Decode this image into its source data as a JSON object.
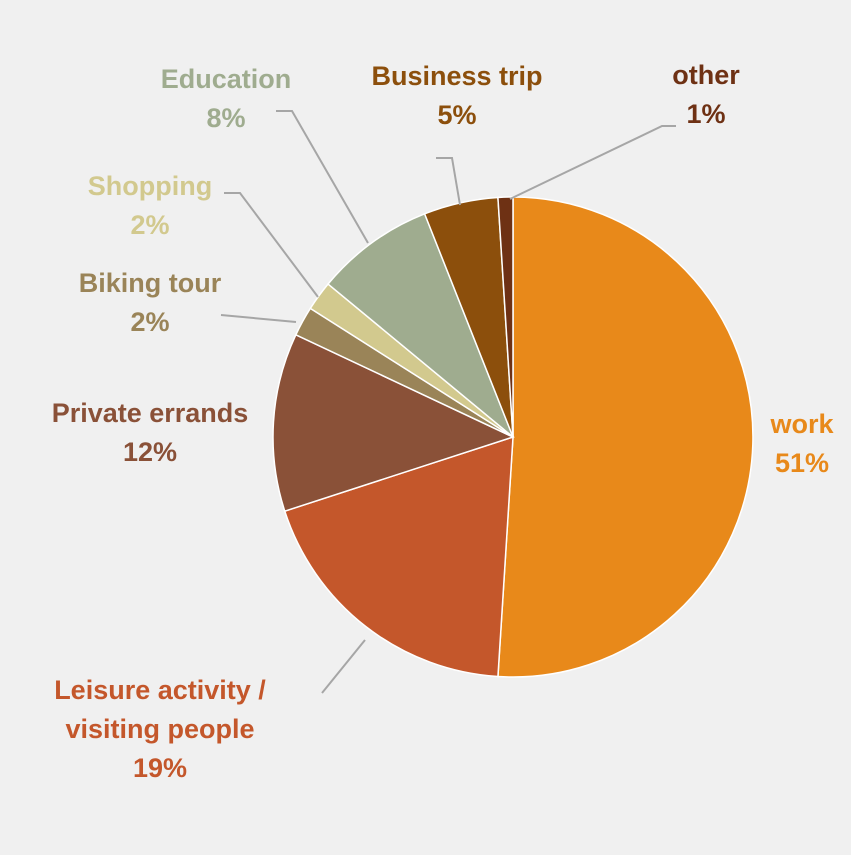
{
  "chart_data": {
    "type": "pie",
    "title": "",
    "slices": [
      {
        "label": "work",
        "label_lines": [
          "work"
        ],
        "value": 51,
        "value_label": "51%",
        "color": "#e8891a"
      },
      {
        "label": "Leisure activity / visiting people",
        "label_lines": [
          "Leisure activity /",
          "visiting people"
        ],
        "value": 19,
        "value_label": "19%",
        "color": "#c4572b"
      },
      {
        "label": "Private errands",
        "label_lines": [
          "Private errands"
        ],
        "value": 12,
        "value_label": "12%",
        "color": "#8a5138"
      },
      {
        "label": "Biking tour",
        "label_lines": [
          "Biking tour"
        ],
        "value": 2,
        "value_label": "2%",
        "color": "#9a8458"
      },
      {
        "label": "Shopping",
        "label_lines": [
          "Shopping"
        ],
        "value": 2,
        "value_label": "2%",
        "color": "#d2c98e"
      },
      {
        "label": "Education",
        "label_lines": [
          "Education"
        ],
        "value": 8,
        "value_label": "8%",
        "color": "#9fac8f"
      },
      {
        "label": "Business trip",
        "label_lines": [
          "Business trip"
        ],
        "value": 5,
        "value_label": "5%",
        "color": "#8c4f0c"
      },
      {
        "label": "other",
        "label_lines": [
          "other"
        ],
        "value": 1,
        "value_label": "1%",
        "color": "#6e3114"
      }
    ],
    "start": "12 o'clock",
    "direction": "clockwise",
    "legend": "none",
    "labels": "outside with leader lines",
    "label_text_colors": [
      "#e8891a",
      "#c4572b",
      "#8a5138",
      "#9a8458",
      "#d2c98e",
      "#9fac8f",
      "#8c4f0c",
      "#6e3114"
    ]
  }
}
